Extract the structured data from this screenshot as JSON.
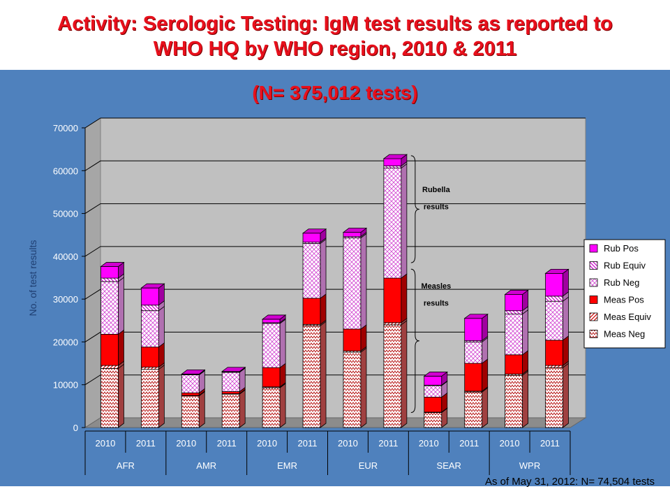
{
  "slide": {
    "title_line1": "Activity: Serologic Testing: IgM test results as reported to",
    "title_line2": "WHO HQ by WHO region, 2010 & 2011",
    "subtitle": "(N= 375,012 tests)",
    "footnote": "As of May 31, 2012:  N= 74,504 tests"
  },
  "colors": {
    "title_red": "#e8101c",
    "panel_blue": "#4f81bd",
    "plot_gray": "#c0c0c0",
    "rub_pos": "#ff00ff",
    "meas_pos": "#ff0000"
  },
  "chart_data": {
    "type": "bar",
    "stacked": true,
    "three_d": true,
    "ylabel": "No. of test results",
    "ylim": [
      0,
      70000
    ],
    "yticks": [
      0,
      10000,
      20000,
      30000,
      40000,
      50000,
      60000,
      70000
    ],
    "ytick_labels": [
      "0",
      "10000",
      "20000",
      "30000",
      "40000",
      "50000",
      "60000",
      "70000"
    ],
    "grid": true,
    "legend_position": "right",
    "categories": [
      "2010",
      "2011",
      "2010",
      "2011",
      "2010",
      "2011",
      "2010",
      "2011",
      "2010",
      "2011",
      "2010",
      "2011"
    ],
    "groups": [
      {
        "label": "AFR",
        "span": 2
      },
      {
        "label": "AMR",
        "span": 2
      },
      {
        "label": "EMR",
        "span": 2
      },
      {
        "label": "EUR",
        "span": 2
      },
      {
        "label": "SEAR",
        "span": 2
      },
      {
        "label": "WPR",
        "span": 2
      }
    ],
    "series": [
      {
        "name": "Meas Neg",
        "pattern": "wave",
        "values": [
          13800,
          13600,
          7400,
          7800,
          9300,
          23800,
          17600,
          24000,
          3500,
          8300,
          12200,
          14000
        ]
      },
      {
        "name": "Meas Equiv",
        "pattern": "hatch",
        "values": [
          700,
          500,
          100,
          100,
          200,
          300,
          300,
          500,
          100,
          200,
          300,
          500
        ]
      },
      {
        "name": "Meas Pos",
        "pattern": "solid",
        "values": [
          7300,
          4700,
          600,
          500,
          4500,
          6100,
          5100,
          10400,
          3500,
          6500,
          4500,
          5900
        ]
      },
      {
        "name": "Rub Neg",
        "pattern": "diamond",
        "values": [
          12300,
          8500,
          4200,
          4500,
          10300,
          12800,
          21300,
          25700,
          2700,
          5000,
          9500,
          9100
        ]
      },
      {
        "name": "Rub Equiv",
        "pattern": "hatch",
        "values": [
          800,
          1300,
          100,
          100,
          200,
          300,
          300,
          500,
          100,
          300,
          800,
          1200
        ]
      },
      {
        "name": "Rub Pos",
        "pattern": "solid",
        "values": [
          2700,
          4000,
          100,
          100,
          800,
          2100,
          1000,
          1700,
          2100,
          5200,
          3800,
          5300
        ]
      }
    ],
    "annotations": [
      {
        "text": "Rubella",
        "category_index": 7,
        "y": 55000
      },
      {
        "text": "results",
        "category_index": 7,
        "y": 51000
      },
      {
        "text": "Measles",
        "category_index": 7,
        "y": 32500
      },
      {
        "text": "results",
        "category_index": 7,
        "y": 28500
      }
    ]
  }
}
